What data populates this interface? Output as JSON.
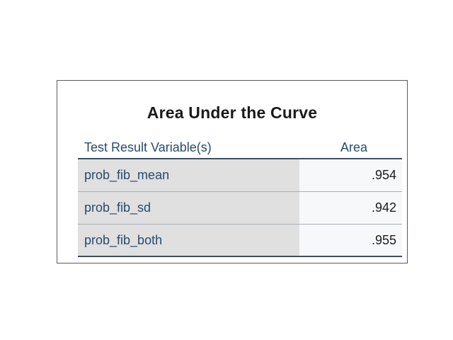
{
  "table": {
    "title": "Area Under the Curve",
    "headers": {
      "variable": "Test Result Variable(s)",
      "area": "Area"
    },
    "rows": [
      {
        "variable": "prob_fib_mean",
        "area": ".954"
      },
      {
        "variable": "prob_fib_sd",
        "area": ".942"
      },
      {
        "variable": "prob_fib_both",
        "area": ".955"
      }
    ]
  }
}
